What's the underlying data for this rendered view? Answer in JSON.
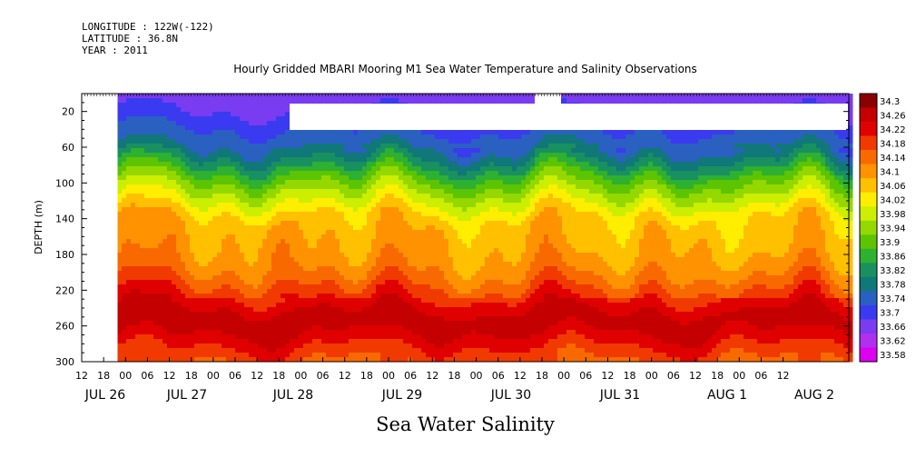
{
  "header": {
    "longitude": "LONGITUDE : 122W(-122)",
    "latitude": "LATITUDE : 36.8N",
    "year": "YEAR : 2011"
  },
  "chart_data": {
    "type": "heatmap",
    "title": "Hourly Gridded MBARI Mooring M1 Sea Water Temperature and Salinity Observations",
    "xlabel": "Sea Water Salinity",
    "ylabel": "DEPTH (m)",
    "ylim": [
      300,
      0
    ],
    "y_ticks": [
      20,
      60,
      100,
      140,
      180,
      220,
      260,
      300
    ],
    "x_hour_ticks": [
      "12",
      "18",
      "00",
      "06",
      "12",
      "18",
      "00",
      "06",
      "12",
      "18",
      "00",
      "06",
      "12",
      "18",
      "00",
      "06",
      "12",
      "18",
      "00",
      "06",
      "12",
      "18",
      "00",
      "06",
      "12",
      "18",
      "00",
      "06",
      "12",
      "18",
      "00",
      "06",
      "12"
    ],
    "x_date_labels": [
      "JUL 26",
      "JUL 27",
      "JUL 28",
      "JUL 29",
      "JUL 30",
      "JUL 31",
      "AUG  1",
      "AUG  2"
    ],
    "colorbar_levels": [
      "34.3",
      "34.26",
      "34.22",
      "34.18",
      "34.14",
      "34.1",
      "34.06",
      "34.02",
      "33.98",
      "33.94",
      "33.9",
      "33.86",
      "33.82",
      "33.78",
      "33.74",
      "33.7",
      "33.66",
      "33.62",
      "33.58"
    ],
    "colorbar_colors": [
      "#8a0000",
      "#c40000",
      "#e00000",
      "#f03a00",
      "#f86a00",
      "#ff9200",
      "#ffc000",
      "#ffee00",
      "#ccee00",
      "#94d800",
      "#5cc400",
      "#2eb030",
      "#189060",
      "#107878",
      "#2a60c0",
      "#3a3af0",
      "#7a3cf0",
      "#b030f0",
      "#dd00ee"
    ],
    "profile": {
      "depth": [
        10,
        20,
        40,
        60,
        80,
        100,
        120,
        140,
        160,
        180,
        200,
        220,
        240,
        255,
        270,
        285,
        300
      ],
      "salinity": [
        33.68,
        33.7,
        33.74,
        33.78,
        33.86,
        33.95,
        34.02,
        34.09,
        34.11,
        34.12,
        34.15,
        34.2,
        34.26,
        34.29,
        34.26,
        34.22,
        34.18
      ]
    }
  }
}
